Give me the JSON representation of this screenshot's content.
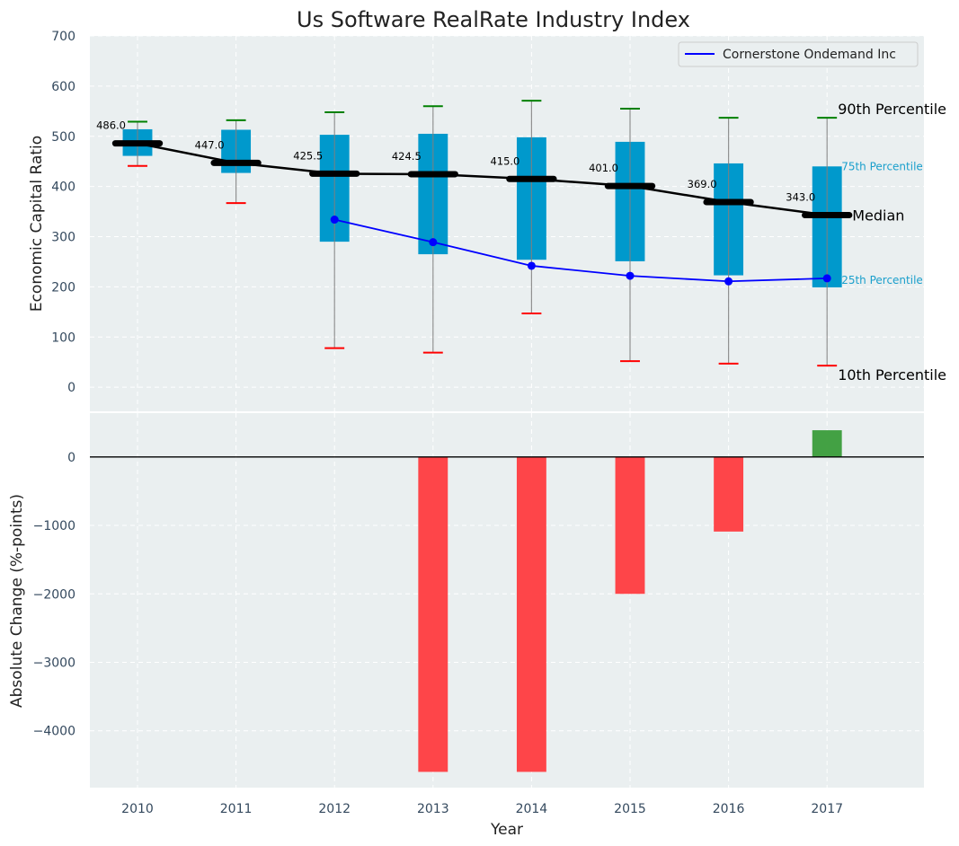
{
  "chart_data": {
    "type": "box-with-bar",
    "title": "Us Software RealRate Industry Index",
    "xlabel": "Year",
    "categories": [
      "2010",
      "2011",
      "2012",
      "2013",
      "2014",
      "2015",
      "2016",
      "2017"
    ],
    "top_panel": {
      "ylabel": "Economic Capital Ratio",
      "ylim": [
        -48,
        700
      ],
      "yticks": [
        0,
        100,
        200,
        300,
        400,
        500,
        600,
        700
      ],
      "grid": true,
      "percentiles": {
        "p10": [
          441,
          367,
          78,
          69,
          147,
          52,
          47,
          43
        ],
        "p25": [
          461,
          427,
          290,
          265,
          254,
          251,
          223,
          199
        ],
        "median": [
          486.0,
          447.0,
          425.5,
          424.5,
          415.0,
          401.0,
          369.0,
          343.0
        ],
        "p75": [
          514,
          513,
          503,
          505,
          498,
          489,
          446,
          440
        ],
        "p90": [
          529,
          532,
          548,
          560,
          571,
          555,
          537,
          537
        ]
      },
      "median_labels": [
        "486.0",
        "447.0",
        "425.5",
        "424.5",
        "415.0",
        "401.0",
        "369.0",
        "343.0"
      ],
      "series": [
        {
          "name": "Cornerstone Ondemand Inc",
          "color": "#0000ff",
          "values": [
            null,
            null,
            334,
            289,
            242,
            222,
            211,
            217
          ]
        }
      ],
      "legend": {
        "position": "top-right",
        "entries": [
          "Cornerstone Ondemand Inc"
        ]
      },
      "annotations": {
        "p90": "90th Percentile",
        "p75": "75th Percentile",
        "median": "Median",
        "p25": "25th Percentile",
        "p10": "10th Percentile"
      },
      "colors": {
        "box": "#0099cc",
        "median": "#000000",
        "p90_cap": "#008000",
        "p10_cap": "#ff0000",
        "whisker": "#808080",
        "label": "#1a9fcc"
      }
    },
    "bottom_panel": {
      "type": "bar",
      "ylabel": "Absolute Change (%-points)",
      "ylim": [
        -4830,
        640
      ],
      "yticks": [
        0,
        -1000,
        -2000,
        -3000,
        -4000
      ],
      "grid": true,
      "values": [
        null,
        null,
        null,
        -4600,
        -4600,
        -2000,
        -1090,
        390
      ],
      "colors": {
        "positive": "#3a9c3a",
        "negative": "#ff3b3f"
      }
    }
  }
}
